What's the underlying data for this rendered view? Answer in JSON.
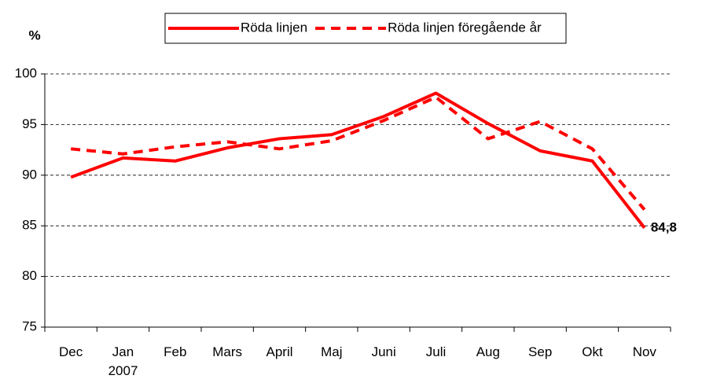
{
  "chart_data": {
    "type": "line",
    "ylabel": "%",
    "categories": [
      "Dec",
      "Jan\n2007",
      "Feb",
      "Mars",
      "April",
      "Maj",
      "Juni",
      "Juli",
      "Aug",
      "Sep",
      "Okt",
      "Nov"
    ],
    "series": [
      {
        "name": "Röda linjen",
        "color": "#ff0000",
        "style": "solid",
        "values": [
          89.8,
          91.7,
          91.4,
          92.7,
          93.6,
          94.0,
          95.8,
          98.1,
          95.1,
          92.4,
          91.4,
          84.8
        ],
        "value_labels": [
          null,
          null,
          null,
          null,
          null,
          null,
          null,
          null,
          null,
          null,
          null,
          "84,8"
        ]
      },
      {
        "name": "Röda linjen föregående år",
        "color": "#ff0000",
        "style": "dashed",
        "values": [
          92.6,
          92.1,
          92.8,
          93.3,
          92.6,
          93.4,
          95.4,
          97.7,
          93.6,
          95.3,
          92.6,
          86.6
        ]
      }
    ],
    "ylim": [
      75,
      100
    ],
    "yticks": [
      75,
      80,
      85,
      90,
      95,
      100
    ],
    "grid": true,
    "legend": "top"
  }
}
